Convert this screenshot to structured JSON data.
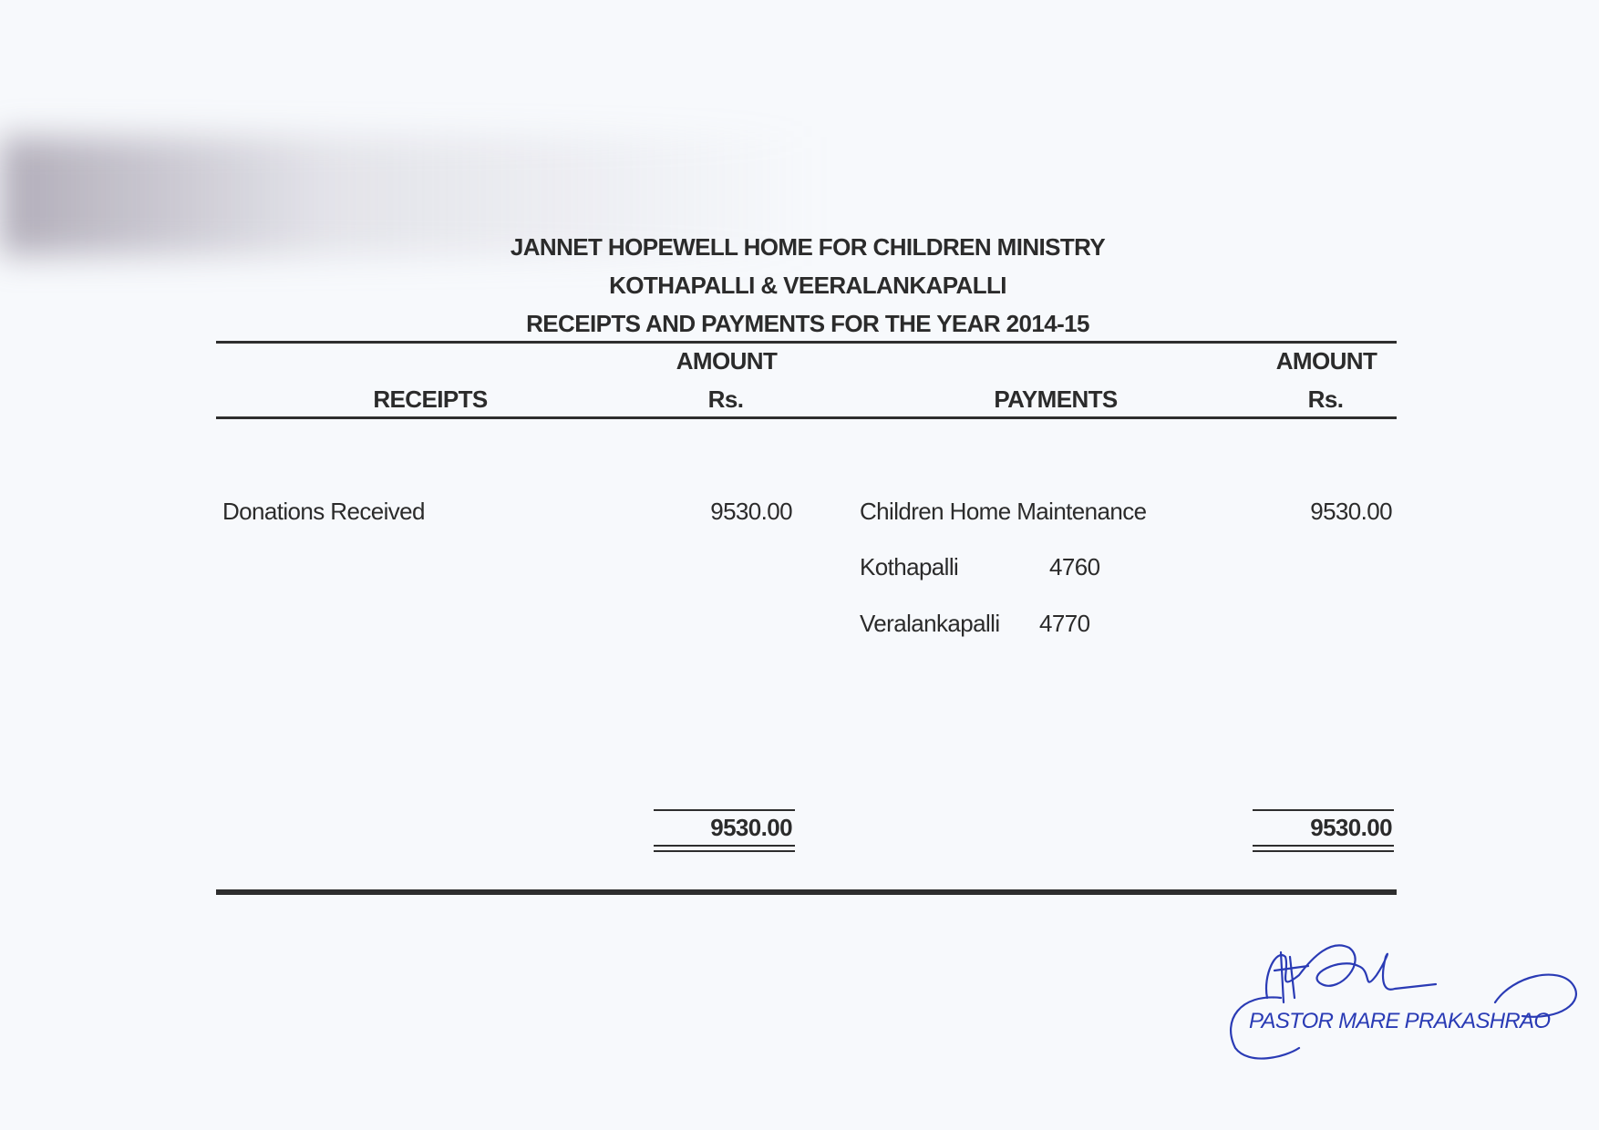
{
  "header": {
    "organization": "JANNET HOPEWELL HOME FOR CHILDREN MINISTRY",
    "locations": "KOTHAPALLI & VEERALANKAPALLI",
    "statement_title": "RECEIPTS AND PAYMENTS FOR THE YEAR 2014-15"
  },
  "columns": {
    "receipts": "RECEIPTS",
    "receipts_amount_line1": "AMOUNT",
    "receipts_amount_line2": "Rs.",
    "payments": "PAYMENTS",
    "payments_amount_line1": "AMOUNT",
    "payments_amount_line2": "Rs."
  },
  "receipts": [
    {
      "label": "Donations Received",
      "amount": "9530.00"
    }
  ],
  "payments": [
    {
      "label": "Children Home Maintenance",
      "amount": "9530.00"
    }
  ],
  "payment_breakdown": [
    {
      "label": "Kothapalli",
      "amount": "4760"
    },
    {
      "label": "Veralankapalli",
      "amount": "4770"
    }
  ],
  "totals": {
    "receipts": "9530.00",
    "payments": "9530.00"
  },
  "signature": {
    "text": "PASTOR MARE PRAKASHRAO",
    "ink_color": "#2a3bb5"
  }
}
